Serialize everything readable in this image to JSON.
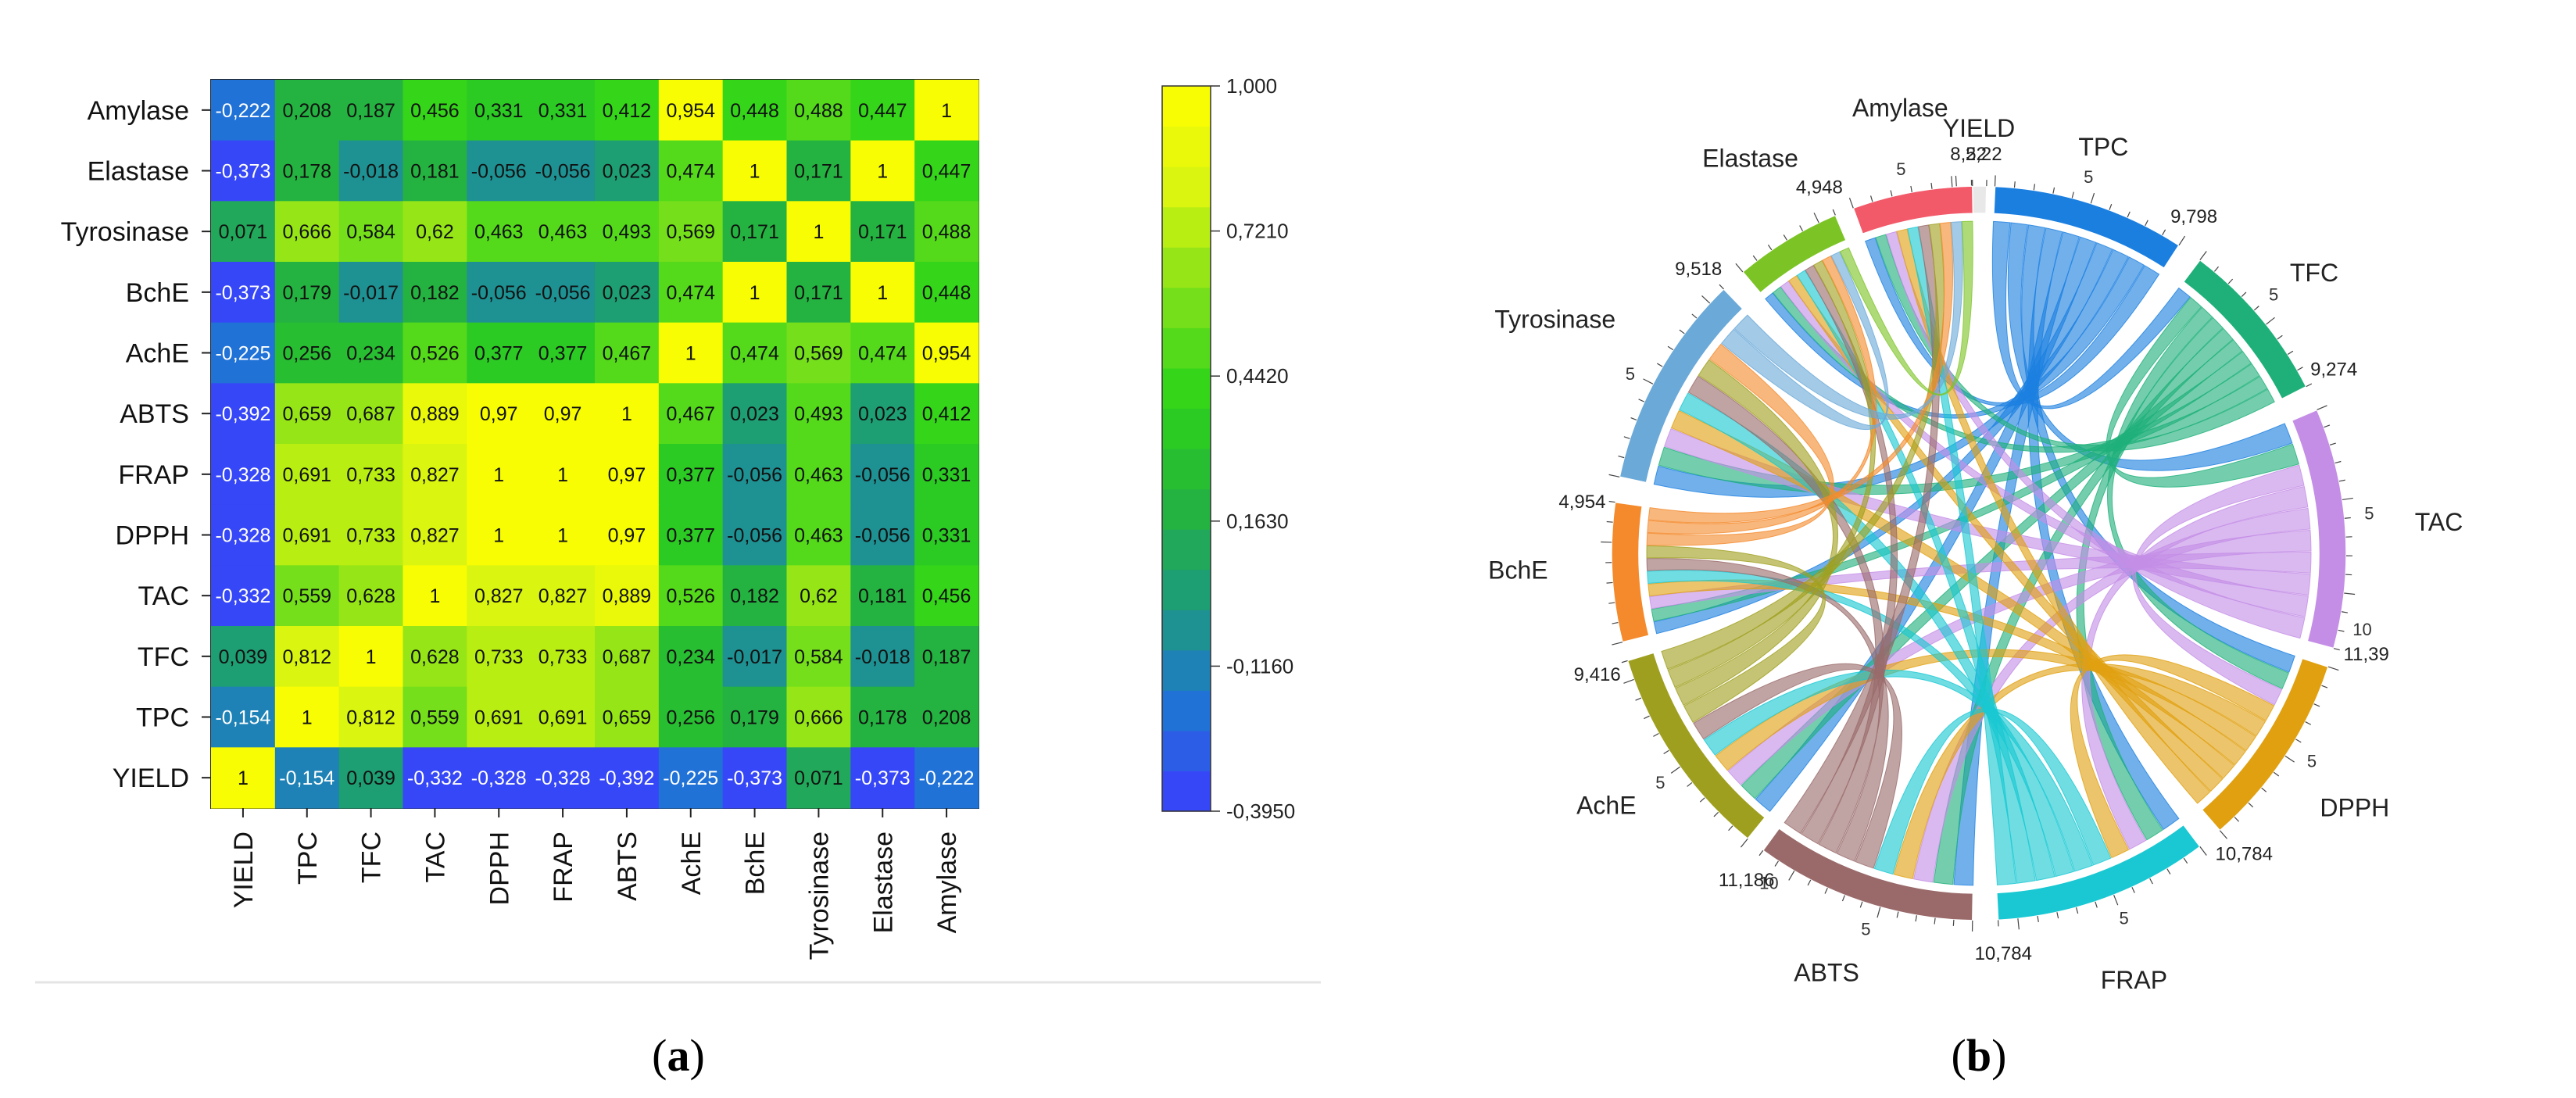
{
  "panel_labels": {
    "a": "a",
    "b": "b"
  },
  "chart_data": [
    {
      "type": "heatmap",
      "title": "",
      "variables": [
        "YIELD",
        "TPC",
        "TFC",
        "TAC",
        "DPPH",
        "FRAP",
        "ABTS",
        "AchE",
        "BchE",
        "Tyrosinase",
        "Elastase",
        "Amylase"
      ],
      "matrix": [
        [
          "1",
          "-0,154",
          "0,039",
          "-0,332",
          "-0,328",
          "-0,328",
          "-0,392",
          "-0,225",
          "-0,373",
          "0,071",
          "-0,373",
          "-0,222"
        ],
        [
          "-0,154",
          "1",
          "0,812",
          "0,559",
          "0,691",
          "0,691",
          "0,659",
          "0,256",
          "0,179",
          "0,666",
          "0,178",
          "0,208"
        ],
        [
          "0,039",
          "0,812",
          "1",
          "0,628",
          "0,733",
          "0,733",
          "0,687",
          "0,234",
          "-0,017",
          "0,584",
          "-0,018",
          "0,187"
        ],
        [
          "-0,332",
          "0,559",
          "0,628",
          "1",
          "0,827",
          "0,827",
          "0,889",
          "0,526",
          "0,182",
          "0,62",
          "0,181",
          "0,456"
        ],
        [
          "-0,328",
          "0,691",
          "0,733",
          "0,827",
          "1",
          "1",
          "0,97",
          "0,377",
          "-0,056",
          "0,463",
          "-0,056",
          "0,331"
        ],
        [
          "-0,328",
          "0,691",
          "0,733",
          "0,827",
          "1",
          "1",
          "0,97",
          "0,377",
          "-0,056",
          "0,463",
          "-0,056",
          "0,331"
        ],
        [
          "-0,392",
          "0,659",
          "0,687",
          "0,889",
          "0,97",
          "0,97",
          "1",
          "0,467",
          "0,023",
          "0,493",
          "0,023",
          "0,412"
        ],
        [
          "-0,225",
          "0,256",
          "0,234",
          "0,526",
          "0,377",
          "0,377",
          "0,467",
          "1",
          "0,474",
          "0,569",
          "0,474",
          "0,954"
        ],
        [
          "-0,373",
          "0,179",
          "-0,017",
          "0,182",
          "-0,056",
          "-0,056",
          "0,023",
          "0,474",
          "1",
          "0,171",
          "1",
          "0,448"
        ],
        [
          "0,071",
          "0,666",
          "0,584",
          "0,62",
          "0,463",
          "0,463",
          "0,493",
          "0,569",
          "0,171",
          "1",
          "0,171",
          "0,488"
        ],
        [
          "-0,373",
          "0,178",
          "-0,018",
          "0,181",
          "-0,056",
          "-0,056",
          "0,023",
          "0,474",
          "1",
          "0,171",
          "1",
          "0,447"
        ],
        [
          "-0,222",
          "0,208",
          "0,187",
          "0,456",
          "0,331",
          "0,331",
          "0,412",
          "0,954",
          "0,448",
          "0,488",
          "0,447",
          "1"
        ]
      ],
      "colorbar": {
        "ticks": [
          "1,000",
          "0,7210",
          "0,4420",
          "0,1630",
          "-0,1160",
          "-0,3950"
        ],
        "range": [
          -0.395,
          1.0
        ],
        "levels": 18,
        "colors": [
          "#3c3cff",
          "#1f74d6",
          "#1d9a7c",
          "#25b53c",
          "#2ed41a",
          "#7fe11a",
          "#d9f50f",
          "#ffff00"
        ]
      }
    },
    {
      "type": "chord",
      "title": "",
      "nodes": [
        {
          "name": "YIELD",
          "start_label": "",
          "end_label": "2,22",
          "color": "#e8e8e8"
        },
        {
          "name": "TPC",
          "start_label": "5",
          "end_label": "9,798",
          "color": "#1b7fe0"
        },
        {
          "name": "TFC",
          "start_label": "5",
          "end_label": "9,274",
          "color": "#1fb07a"
        },
        {
          "name": "TAC",
          "start_label": "5",
          "end_label": "11,39",
          "extra_label": "10",
          "color": "#c48ee6"
        },
        {
          "name": "DPPH",
          "start_label": "5",
          "end_label": "10,784",
          "color": "#e0a010"
        },
        {
          "name": "FRAP",
          "start_label": "5",
          "end_label": "10,784",
          "color": "#19c8d2"
        },
        {
          "name": "ABTS",
          "start_label": "5",
          "end_label": "11,186",
          "extra_label": "10",
          "color": "#9a6a6a"
        },
        {
          "name": "AchE",
          "start_label": "5",
          "end_label": "9,416",
          "color": "#9f9f1f"
        },
        {
          "name": "BchE",
          "start_label": "",
          "end_label": "4,954",
          "color": "#f48a2c"
        },
        {
          "name": "Tyrosinase",
          "start_label": "5",
          "end_label": "9,518",
          "color": "#6aa9d8"
        },
        {
          "name": "Elastase",
          "start_label": "",
          "end_label": "4,948",
          "color": "#7cc425"
        },
        {
          "name": "Amylase",
          "start_label": "5",
          "end_label": "8,52",
          "color": "#f25a6a"
        }
      ]
    }
  ]
}
